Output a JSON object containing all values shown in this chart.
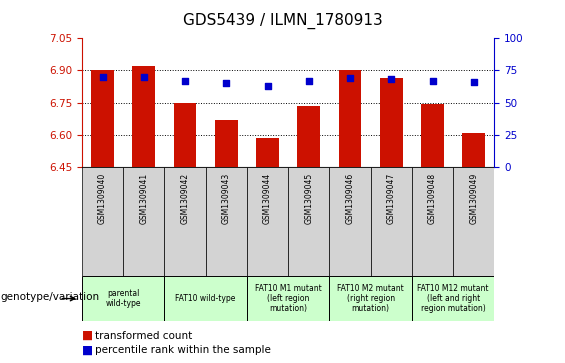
{
  "title": "GDS5439 / ILMN_1780913",
  "samples": [
    "GSM1309040",
    "GSM1309041",
    "GSM1309042",
    "GSM1309043",
    "GSM1309044",
    "GSM1309045",
    "GSM1309046",
    "GSM1309047",
    "GSM1309048",
    "GSM1309049"
  ],
  "bar_values": [
    6.9,
    6.92,
    6.75,
    6.67,
    6.585,
    6.735,
    6.9,
    6.865,
    6.745,
    6.61
  ],
  "dot_values": [
    70,
    70,
    67,
    65,
    63,
    67,
    69,
    68,
    67,
    66
  ],
  "ylim_left": [
    6.45,
    7.05
  ],
  "ylim_right": [
    0,
    100
  ],
  "yticks_left": [
    6.45,
    6.6,
    6.75,
    6.9,
    7.05
  ],
  "yticks_right": [
    0,
    25,
    50,
    75,
    100
  ],
  "bar_color": "#cc1100",
  "dot_color": "#0000cc",
  "bar_bottom": 6.45,
  "grid_values": [
    6.6,
    6.75,
    6.9
  ],
  "group_defs": [
    {
      "indices": [
        0,
        1
      ],
      "label": "parental\nwild-type"
    },
    {
      "indices": [
        2,
        3
      ],
      "label": "FAT10 wild-type"
    },
    {
      "indices": [
        4,
        5
      ],
      "label": "FAT10 M1 mutant\n(left region\nmutation)"
    },
    {
      "indices": [
        6,
        7
      ],
      "label": "FAT10 M2 mutant\n(right region\nmutation)"
    },
    {
      "indices": [
        8,
        9
      ],
      "label": "FAT10 M12 mutant\n(left and right\nregion mutation)"
    }
  ],
  "genotype_bg": "#ccffcc",
  "sample_bg": "#d3d3d3",
  "legend_label_bar": "transformed count",
  "legend_label_dot": "percentile rank within the sample",
  "xlabel_genotype": "genotype/variation"
}
